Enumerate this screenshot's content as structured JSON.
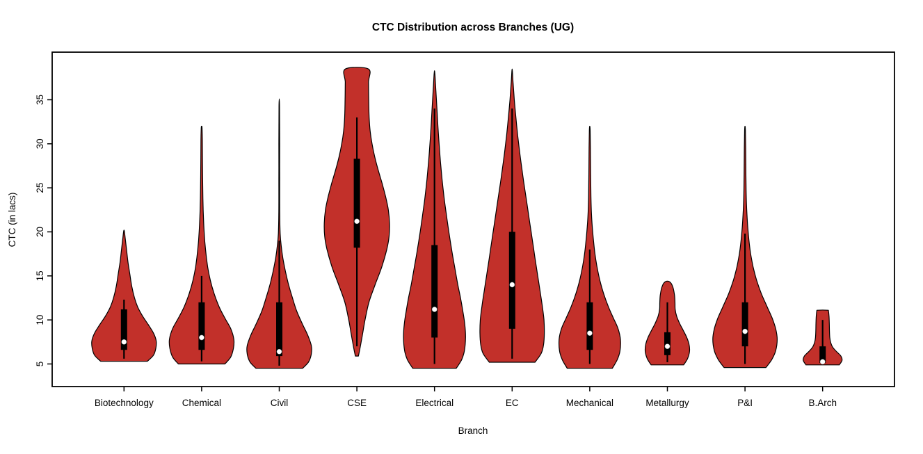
{
  "page": {
    "background": "#ffffff"
  },
  "chart_data": {
    "type": "violin",
    "title": "CTC Distribution across Branches (UG)",
    "xlabel": "Branch",
    "ylabel": "CTC (in lacs)",
    "categories": [
      "Biotechnology",
      "Chemical",
      "Civil",
      "CSE",
      "Electrical",
      "EC",
      "Mechanical",
      "Metallurgy",
      "P&I",
      "B.Arch"
    ],
    "y_ticks": [
      5,
      10,
      15,
      20,
      25,
      30,
      35
    ],
    "ylim": [
      2.5,
      40.5
    ],
    "grid": false,
    "legend": "none",
    "colors": {
      "violin_fill": "#C2302A",
      "violin_stroke": "#000000",
      "box_fill": "#000000",
      "median_fill": "#FFFFFF",
      "axis": "#000000"
    },
    "series": [
      {
        "name": "Biotechnology",
        "min": 5.3,
        "max": 20.2,
        "q1": 6.6,
        "q3": 11.2,
        "median": 7.5,
        "whisker_low": 5.6,
        "whisker_high": 12.3,
        "profile": [
          [
            5.3,
            0.3
          ],
          [
            6.0,
            0.38
          ],
          [
            6.8,
            0.41
          ],
          [
            7.6,
            0.415
          ],
          [
            8.5,
            0.38
          ],
          [
            9.5,
            0.31
          ],
          [
            10.5,
            0.235
          ],
          [
            11.5,
            0.175
          ],
          [
            12.5,
            0.135
          ],
          [
            13.8,
            0.1
          ],
          [
            15.2,
            0.075
          ],
          [
            16.5,
            0.052
          ],
          [
            18.0,
            0.032
          ],
          [
            19.3,
            0.015
          ],
          [
            20.2,
            0
          ]
        ]
      },
      {
        "name": "Chemical",
        "min": 5.0,
        "max": 32.0,
        "q1": 6.6,
        "q3": 12.0,
        "median": 8.0,
        "whisker_low": 5.3,
        "whisker_high": 15.0,
        "profile": [
          [
            5.0,
            0.3
          ],
          [
            5.8,
            0.375
          ],
          [
            6.8,
            0.41
          ],
          [
            7.8,
            0.415
          ],
          [
            9.0,
            0.375
          ],
          [
            10.2,
            0.3
          ],
          [
            11.5,
            0.225
          ],
          [
            13.0,
            0.16
          ],
          [
            14.5,
            0.112
          ],
          [
            16.0,
            0.078
          ],
          [
            18.0,
            0.05
          ],
          [
            20.0,
            0.032
          ],
          [
            22.5,
            0.02
          ],
          [
            25.0,
            0.014
          ],
          [
            28.0,
            0.011
          ],
          [
            30.5,
            0.009
          ],
          [
            31.8,
            0.005
          ],
          [
            32.0,
            0
          ]
        ]
      },
      {
        "name": "Civil",
        "min": 4.5,
        "max": 35.1,
        "q1": 5.9,
        "q3": 12.0,
        "median": 6.4,
        "whisker_low": 4.8,
        "whisker_high": 19.0,
        "profile": [
          [
            4.5,
            0.3
          ],
          [
            5.2,
            0.375
          ],
          [
            6.0,
            0.41
          ],
          [
            7.0,
            0.415
          ],
          [
            8.2,
            0.37
          ],
          [
            9.5,
            0.3
          ],
          [
            11.0,
            0.225
          ],
          [
            12.5,
            0.17
          ],
          [
            14.0,
            0.12
          ],
          [
            15.5,
            0.08
          ],
          [
            17.0,
            0.047
          ],
          [
            18.5,
            0.024
          ],
          [
            19.8,
            0.012
          ],
          [
            22.0,
            0.006
          ],
          [
            26.0,
            0.005
          ],
          [
            30.0,
            0.005
          ],
          [
            34.0,
            0.004
          ],
          [
            35.1,
            0
          ]
        ]
      },
      {
        "name": "CSE",
        "min": 5.9,
        "max": 38.5,
        "q1": 18.2,
        "q3": 28.3,
        "median": 21.2,
        "whisker_low": 7.0,
        "whisker_high": 33.0,
        "profile": [
          [
            5.9,
            0.02
          ],
          [
            7.0,
            0.045
          ],
          [
            8.5,
            0.075
          ],
          [
            10.0,
            0.105
          ],
          [
            12.0,
            0.155
          ],
          [
            14.0,
            0.235
          ],
          [
            16.0,
            0.32
          ],
          [
            18.0,
            0.385
          ],
          [
            19.5,
            0.415
          ],
          [
            21.0,
            0.42
          ],
          [
            22.5,
            0.405
          ],
          [
            24.0,
            0.37
          ],
          [
            25.5,
            0.325
          ],
          [
            27.0,
            0.275
          ],
          [
            28.5,
            0.23
          ],
          [
            30.0,
            0.195
          ],
          [
            31.5,
            0.17
          ],
          [
            33.0,
            0.158
          ],
          [
            35.0,
            0.152
          ],
          [
            37.0,
            0.15
          ],
          [
            38.5,
            0.148
          ]
        ]
      },
      {
        "name": "Electrical",
        "min": 4.5,
        "max": 38.3,
        "q1": 8.0,
        "q3": 18.5,
        "median": 11.2,
        "whisker_low": 5.0,
        "whisker_high": 34.0,
        "profile": [
          [
            4.5,
            0.28
          ],
          [
            5.5,
            0.35
          ],
          [
            6.5,
            0.385
          ],
          [
            8.0,
            0.4
          ],
          [
            9.5,
            0.39
          ],
          [
            11.0,
            0.365
          ],
          [
            12.5,
            0.335
          ],
          [
            14.0,
            0.3
          ],
          [
            16.0,
            0.26
          ],
          [
            18.0,
            0.22
          ],
          [
            20.0,
            0.185
          ],
          [
            22.0,
            0.152
          ],
          [
            24.0,
            0.122
          ],
          [
            26.0,
            0.097
          ],
          [
            28.0,
            0.076
          ],
          [
            30.0,
            0.059
          ],
          [
            32.0,
            0.044
          ],
          [
            34.0,
            0.031
          ],
          [
            36.0,
            0.018
          ],
          [
            37.8,
            0.006
          ],
          [
            38.3,
            0
          ]
        ]
      },
      {
        "name": "EC",
        "min": 5.2,
        "max": 38.5,
        "q1": 9.0,
        "q3": 20.0,
        "median": 14.0,
        "whisker_low": 5.6,
        "whisker_high": 34.0,
        "profile": [
          [
            5.2,
            0.295
          ],
          [
            6.2,
            0.375
          ],
          [
            7.2,
            0.405
          ],
          [
            8.5,
            0.415
          ],
          [
            10.0,
            0.41
          ],
          [
            11.5,
            0.39
          ],
          [
            13.0,
            0.365
          ],
          [
            15.0,
            0.33
          ],
          [
            17.0,
            0.295
          ],
          [
            19.0,
            0.262
          ],
          [
            21.0,
            0.228
          ],
          [
            23.0,
            0.194
          ],
          [
            25.0,
            0.16
          ],
          [
            27.0,
            0.128
          ],
          [
            29.0,
            0.098
          ],
          [
            31.0,
            0.071
          ],
          [
            33.0,
            0.048
          ],
          [
            35.0,
            0.028
          ],
          [
            37.0,
            0.012
          ],
          [
            38.5,
            0
          ]
        ]
      },
      {
        "name": "Mechanical",
        "min": 4.5,
        "max": 32.0,
        "q1": 6.6,
        "q3": 12.0,
        "median": 8.5,
        "whisker_low": 5.0,
        "whisker_high": 18.0,
        "profile": [
          [
            4.5,
            0.29
          ],
          [
            5.5,
            0.355
          ],
          [
            6.5,
            0.39
          ],
          [
            7.8,
            0.395
          ],
          [
            9.0,
            0.365
          ],
          [
            10.2,
            0.305
          ],
          [
            11.5,
            0.24
          ],
          [
            13.0,
            0.178
          ],
          [
            14.5,
            0.13
          ],
          [
            16.0,
            0.094
          ],
          [
            17.5,
            0.067
          ],
          [
            19.0,
            0.048
          ],
          [
            20.5,
            0.033
          ],
          [
            22.0,
            0.022
          ],
          [
            24.0,
            0.015
          ],
          [
            26.5,
            0.012
          ],
          [
            29.5,
            0.009
          ],
          [
            31.5,
            0.005
          ],
          [
            32.0,
            0
          ]
        ]
      },
      {
        "name": "Metallurgy",
        "min": 4.9,
        "max": 14.4,
        "q1": 6.0,
        "q3": 8.6,
        "median": 7.0,
        "whisker_low": 5.2,
        "whisker_high": 12.0,
        "profile": [
          [
            4.9,
            0.21
          ],
          [
            5.6,
            0.26
          ],
          [
            6.4,
            0.285
          ],
          [
            7.2,
            0.28
          ],
          [
            8.0,
            0.25
          ],
          [
            8.8,
            0.205
          ],
          [
            9.6,
            0.158
          ],
          [
            10.4,
            0.12
          ],
          [
            11.2,
            0.1
          ],
          [
            12.0,
            0.098
          ],
          [
            12.8,
            0.092
          ],
          [
            13.6,
            0.075
          ],
          [
            14.2,
            0.045
          ],
          [
            14.4,
            0
          ]
        ]
      },
      {
        "name": "P&I",
        "min": 4.6,
        "max": 32.0,
        "q1": 7.0,
        "q3": 12.0,
        "median": 8.7,
        "whisker_low": 5.0,
        "whisker_high": 19.8,
        "profile": [
          [
            4.6,
            0.27
          ],
          [
            5.5,
            0.345
          ],
          [
            6.5,
            0.395
          ],
          [
            7.8,
            0.415
          ],
          [
            9.0,
            0.395
          ],
          [
            10.2,
            0.35
          ],
          [
            11.5,
            0.285
          ],
          [
            13.0,
            0.21
          ],
          [
            14.5,
            0.15
          ],
          [
            16.0,
            0.105
          ],
          [
            17.5,
            0.073
          ],
          [
            19.0,
            0.051
          ],
          [
            20.5,
            0.036
          ],
          [
            22.0,
            0.025
          ],
          [
            24.0,
            0.016
          ],
          [
            26.5,
            0.012
          ],
          [
            29.5,
            0.009
          ],
          [
            31.5,
            0.005
          ],
          [
            32.0,
            0
          ]
        ]
      },
      {
        "name": "B.Arch",
        "min": 4.9,
        "max": 11.1,
        "q1": 5.1,
        "q3": 7.0,
        "median": 5.25,
        "whisker_low": 5.0,
        "whisker_high": 10.0,
        "profile": [
          [
            4.9,
            0.215
          ],
          [
            5.4,
            0.25
          ],
          [
            5.9,
            0.235
          ],
          [
            6.4,
            0.18
          ],
          [
            6.9,
            0.13
          ],
          [
            7.4,
            0.105
          ],
          [
            8.0,
            0.092
          ],
          [
            8.8,
            0.088
          ],
          [
            9.6,
            0.086
          ],
          [
            10.4,
            0.082
          ],
          [
            11.0,
            0.075
          ],
          [
            11.1,
            0.06
          ]
        ]
      }
    ]
  }
}
